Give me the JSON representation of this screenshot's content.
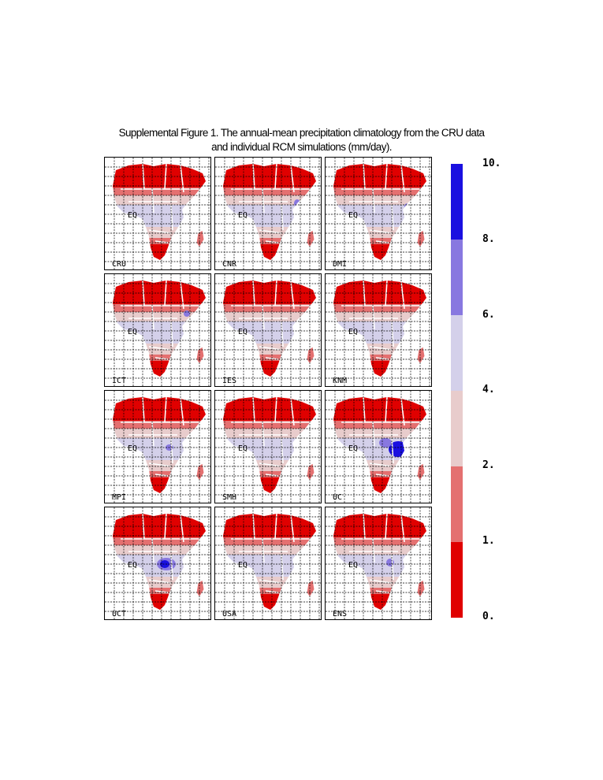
{
  "caption": {
    "line1": "Supplemental Figure 1. The annual-mean precipitation climatology from the CRU data",
    "line2": "and individual RCM simulations (mm/day)."
  },
  "equator_label": "EQ",
  "chart_data": {
    "type": "heatmap",
    "title": "Supplemental Figure 1. The annual-mean precipitation climatology from the CRU data and individual RCM simulations (mm/day).",
    "panels": [
      "CRU",
      "CNR",
      "DMI",
      "ICT",
      "IES",
      "KNM",
      "MPI",
      "SMH",
      "UC",
      "UCT",
      "USA",
      "ENS"
    ],
    "legend_labels": [
      "10.",
      "8.",
      "6.",
      "4.",
      "2.",
      "1.",
      "0."
    ],
    "colorbar_levels": [
      0,
      1,
      2,
      4,
      6,
      8,
      10
    ],
    "colors": [
      "#e00000",
      "#e47070",
      "#e8cccc",
      "#d4d0ea",
      "#8878e0",
      "#1a10e0"
    ],
    "grid": true
  }
}
